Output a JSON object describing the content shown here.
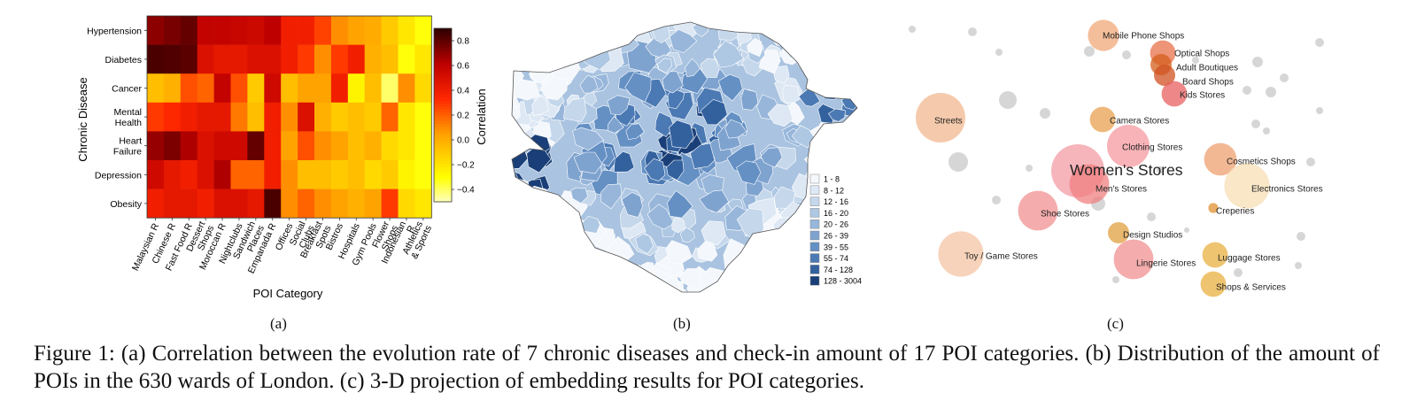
{
  "panel_a": {
    "chart_data": {
      "type": "heatmap",
      "ylabel": "Chronic Disease",
      "xlabel": "POI Category",
      "colorbar_label": "Correlation",
      "colorbar_ticks": [
        "0.8",
        "0.6",
        "0.4",
        "0.2",
        "0.0",
        "−0.2",
        "−0.4"
      ],
      "colorbar_range": [
        -0.5,
        0.9
      ],
      "rows": [
        "Hypertension",
        "Diabetes",
        "Cancer",
        "Mental Health",
        "Heart Failure",
        "Depression",
        "Obesity"
      ],
      "columns": [
        "Malaysian R",
        "Chinese R",
        "Fast Food R",
        "Dessert Shops",
        "Moroccan R",
        "Nightclubs",
        "Sandwich Places",
        "Empanada R",
        "Offices",
        "Social Clubs",
        "Breakfast Spots",
        "Bistros",
        "Hospitals",
        "Gym Pools",
        "Flower Shops",
        "Indonesian R",
        "Athletics & Sports"
      ],
      "values": [
        [
          0.72,
          0.76,
          0.8,
          0.6,
          0.6,
          0.58,
          0.56,
          0.62,
          0.4,
          0.4,
          0.28,
          0.1,
          0.05,
          0.02,
          -0.1,
          -0.2,
          -0.3
        ],
        [
          0.85,
          0.84,
          0.82,
          0.5,
          0.45,
          0.45,
          0.5,
          0.5,
          0.4,
          0.3,
          0.1,
          0.3,
          0.4,
          0.0,
          -0.05,
          -0.3,
          -0.2
        ],
        [
          -0.05,
          0.0,
          0.25,
          0.2,
          0.6,
          0.25,
          -0.1,
          0.55,
          -0.05,
          0.05,
          0.05,
          0.4,
          -0.25,
          -0.05,
          -0.4,
          0.1,
          -0.15
        ],
        [
          0.3,
          0.35,
          0.4,
          0.45,
          0.45,
          0.15,
          -0.05,
          0.4,
          0.1,
          0.5,
          0.0,
          -0.1,
          -0.05,
          -0.1,
          0.2,
          -0.2,
          -0.3
        ],
        [
          0.7,
          0.75,
          0.65,
          0.5,
          0.55,
          0.55,
          0.8,
          0.4,
          0.05,
          0.25,
          0.1,
          0.05,
          -0.05,
          0.0,
          -0.15,
          -0.2,
          -0.3
        ],
        [
          0.55,
          0.45,
          0.4,
          0.5,
          0.65,
          0.2,
          0.2,
          0.4,
          0.1,
          -0.05,
          -0.05,
          -0.1,
          -0.05,
          -0.15,
          -0.1,
          -0.25,
          -0.3
        ],
        [
          0.4,
          0.45,
          0.45,
          0.4,
          0.5,
          0.5,
          0.45,
          0.85,
          0.1,
          0.2,
          0.1,
          0.05,
          0.0,
          0.05,
          0.3,
          -0.15,
          -0.2
        ]
      ]
    }
  },
  "panel_b": {
    "legend": [
      "1 - 8",
      "8 - 12",
      "12 - 16",
      "16 - 20",
      "20 - 26",
      "26 - 39",
      "39 - 55",
      "55 - 74",
      "74 - 128",
      "128 - 3004"
    ],
    "legend_colors": [
      "#f4f7fb",
      "#dde8f4",
      "#c5d7eb",
      "#aec7e3",
      "#97b6da",
      "#7fa3cf",
      "#6590c4",
      "#4b79b3",
      "#33619e",
      "#1a3f78"
    ]
  },
  "panel_c": {
    "highlight_label": "Women's Stores",
    "points": [
      {
        "label": "Mobile Phone Shops",
        "color": "#f0a878",
        "r": 2.2
      },
      {
        "label": "Optical Shops",
        "color": "#e8704a",
        "r": 1.8
      },
      {
        "label": "Adult Boutiques",
        "color": "#d4601e",
        "r": 1.5
      },
      {
        "label": "Board Shops",
        "color": "#d05020",
        "r": 1.5
      },
      {
        "label": "Kids Stores",
        "color": "#e86060",
        "r": 1.8
      },
      {
        "label": "Streets",
        "color": "#f2b890",
        "r": 3.5
      },
      {
        "label": "Camera Stores",
        "color": "#e8a050",
        "r": 1.8
      },
      {
        "label": "Clothing Stores",
        "color": "#f59aa0",
        "r": 3.0
      },
      {
        "label": "Cosmetics Shops",
        "color": "#eea070",
        "r": 2.3
      },
      {
        "label": "Men's Stores",
        "color": "#f08080",
        "r": 2.8
      },
      {
        "label": "Electronics Stores",
        "color": "#f7dfb5",
        "r": 3.2
      },
      {
        "label": "Creperies",
        "color": "#e09030",
        "r": 0.7
      },
      {
        "label": "Shoe Stores",
        "color": "#f29090",
        "r": 2.8
      },
      {
        "label": "Design Studios",
        "color": "#e0a040",
        "r": 1.5
      },
      {
        "label": "Toy / Game Stores",
        "color": "#f4c4a4",
        "r": 3.2
      },
      {
        "label": "Lingerie Stores",
        "color": "#f29090",
        "r": 2.8
      },
      {
        "label": "Luggage Stores",
        "color": "#e8b040",
        "r": 1.8
      },
      {
        "label": "Shops & Services",
        "color": "#e8b040",
        "r": 1.8
      }
    ]
  },
  "subcaptions": [
    "(a)",
    "(b)",
    "(c)"
  ],
  "caption": "Figure 1: (a) Correlation between the evolution rate of 7 chronic diseases and check-in amount of 17 POI categories. (b) Distribution of the amount of POIs in the 630 wards of London. (c) 3-D projection of embedding results for POI categories."
}
